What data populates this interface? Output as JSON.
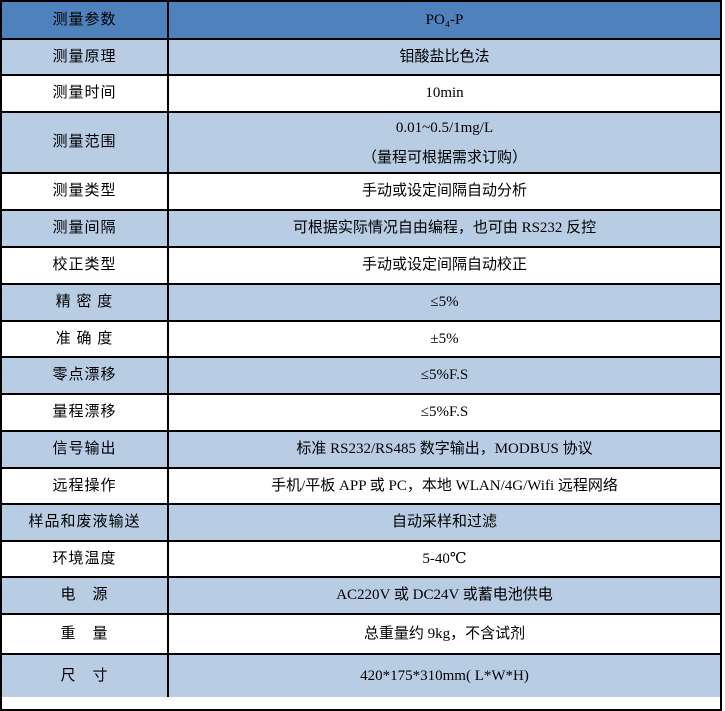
{
  "table": {
    "columns": [
      "parameter",
      "value"
    ],
    "rows": [
      {
        "label": "测量参数",
        "value": "PO₄-P"
      },
      {
        "label": "测量原理",
        "value": "钼酸盐比色法"
      },
      {
        "label": "测量时间",
        "value": "10min"
      },
      {
        "label": "测量范围",
        "value": "0.01~0.5/1mg/L\n（量程可根据需求订购）"
      },
      {
        "label": "测量类型",
        "value": "手动或设定间隔自动分析"
      },
      {
        "label": "测量间隔",
        "value": "可根据实际情况自由编程，也可由 RS232 反控"
      },
      {
        "label": "校正类型",
        "value": "手动或设定间隔自动校正"
      },
      {
        "label": "精 密 度",
        "value": "≤5%"
      },
      {
        "label": "准 确 度",
        "value": "±5%"
      },
      {
        "label": "零点漂移",
        "value": "≤5%F.S"
      },
      {
        "label": "量程漂移",
        "value": "≤5%F.S"
      },
      {
        "label": "信号输出",
        "value": "标准 RS232/RS485 数字输出，MODBUS 协议"
      },
      {
        "label": "远程操作",
        "value": "手机/平板 APP 或 PC，本地 WLAN/4G/Wifi 远程网络"
      },
      {
        "label": "样品和废液输送",
        "value": "自动采样和过滤"
      },
      {
        "label": "环境温度",
        "value": "5-40℃"
      },
      {
        "label": "电　源",
        "value": "AC220V 或 DC24V 或蓄电池供电"
      },
      {
        "label": "重　量",
        "value": "总重量约 9kg，不含试剂"
      },
      {
        "label": "尺　寸",
        "value": "420*175*310mm( L*W*H)"
      }
    ]
  },
  "colors": {
    "header-bg": "#4f81bd",
    "alt-bg": "#b8cce4",
    "row-bg": "#ffffff",
    "border": "#000000",
    "text": "#000000"
  }
}
